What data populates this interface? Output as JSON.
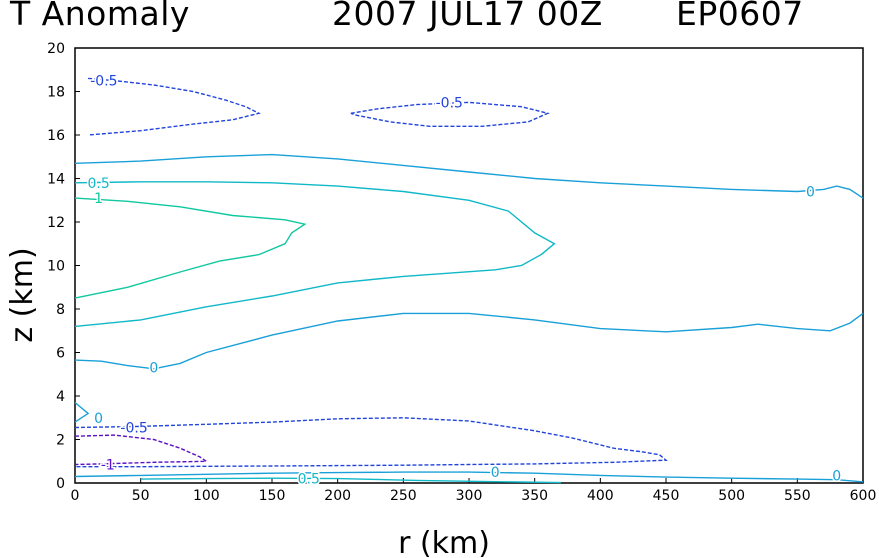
{
  "header": {
    "field": "T Anomaly",
    "datetime": "2007 JUL17 00Z",
    "storm_id": "EP0607"
  },
  "chart_data": {
    "type": "contour",
    "title": "T Anomaly   2007 JUL17 00Z   EP0607",
    "xlabel": "r (km)",
    "ylabel": "z (km)",
    "xlim": [
      0,
      600
    ],
    "ylim": [
      0,
      20
    ],
    "xticks": [
      0,
      50,
      100,
      150,
      200,
      250,
      300,
      350,
      400,
      450,
      500,
      550,
      600
    ],
    "yticks": [
      0,
      2,
      4,
      6,
      8,
      10,
      12,
      14,
      16,
      18,
      20
    ],
    "colors": {
      "neg1": "#5a10c8",
      "neg05": "#2244dd",
      "zero": "#1aa0d8",
      "pos05": "#10b8c8",
      "pos1": "#10c8a0"
    },
    "contours": [
      {
        "level": -0.5,
        "color_key": "neg05",
        "dashed": true,
        "label": "-0.5",
        "label_at": [
          22,
          18.5
        ],
        "points": [
          [
            10,
            18.6
          ],
          [
            30,
            18.5
          ],
          [
            60,
            18.3
          ],
          [
            90,
            18.0
          ],
          [
            115,
            17.6
          ],
          [
            130,
            17.3
          ],
          [
            140,
            17.0
          ],
          [
            120,
            16.7
          ],
          [
            90,
            16.5
          ],
          [
            50,
            16.2
          ],
          [
            10,
            16.0
          ]
        ]
      },
      {
        "level": -0.5,
        "color_key": "neg05",
        "dashed": true,
        "label": "-0.5",
        "label_at": [
          285,
          17.5
        ],
        "points": [
          [
            210,
            17.0
          ],
          [
            230,
            17.2
          ],
          [
            260,
            17.4
          ],
          [
            300,
            17.5
          ],
          [
            340,
            17.3
          ],
          [
            360,
            17.0
          ],
          [
            345,
            16.6
          ],
          [
            310,
            16.4
          ],
          [
            270,
            16.4
          ],
          [
            240,
            16.6
          ],
          [
            215,
            16.9
          ],
          [
            210,
            17.0
          ]
        ]
      },
      {
        "level": 0,
        "color_key": "zero",
        "dashed": false,
        "label": "0",
        "label_at": [
          560,
          13.4
        ],
        "points": [
          [
            0,
            14.7
          ],
          [
            50,
            14.8
          ],
          [
            100,
            15.0
          ],
          [
            150,
            15.1
          ],
          [
            200,
            14.9
          ],
          [
            250,
            14.6
          ],
          [
            300,
            14.3
          ],
          [
            350,
            14.0
          ],
          [
            400,
            13.8
          ],
          [
            450,
            13.65
          ],
          [
            500,
            13.5
          ],
          [
            550,
            13.4
          ],
          [
            570,
            13.5
          ],
          [
            580,
            13.65
          ],
          [
            590,
            13.5
          ],
          [
            600,
            13.1
          ]
        ]
      },
      {
        "level": 0.5,
        "color_key": "pos05",
        "dashed": false,
        "label": "0.5",
        "label_at": [
          18,
          13.8
        ],
        "points": [
          [
            0,
            13.8
          ],
          [
            50,
            13.85
          ],
          [
            100,
            13.85
          ],
          [
            150,
            13.8
          ],
          [
            200,
            13.65
          ],
          [
            250,
            13.4
          ],
          [
            300,
            13.0
          ],
          [
            330,
            12.5
          ],
          [
            350,
            11.5
          ],
          [
            365,
            11.0
          ],
          [
            355,
            10.5
          ],
          [
            340,
            10.0
          ],
          [
            320,
            9.8
          ],
          [
            250,
            9.5
          ],
          [
            200,
            9.2
          ],
          [
            150,
            8.6
          ],
          [
            100,
            8.1
          ],
          [
            50,
            7.5
          ],
          [
            0,
            7.2
          ]
        ]
      },
      {
        "level": 1,
        "color_key": "pos1",
        "dashed": false,
        "label": "1",
        "label_at": [
          18,
          13.1
        ],
        "points": [
          [
            0,
            13.1
          ],
          [
            40,
            12.95
          ],
          [
            80,
            12.7
          ],
          [
            120,
            12.3
          ],
          [
            160,
            12.1
          ],
          [
            175,
            11.9
          ],
          [
            165,
            11.5
          ],
          [
            160,
            11.0
          ],
          [
            140,
            10.5
          ],
          [
            110,
            10.2
          ],
          [
            80,
            9.7
          ],
          [
            40,
            9.0
          ],
          [
            0,
            8.5
          ]
        ]
      },
      {
        "level": 0,
        "color_key": "zero",
        "dashed": false,
        "label": "0",
        "label_at": [
          60,
          5.3
        ],
        "points": [
          [
            0,
            5.65
          ],
          [
            20,
            5.6
          ],
          [
            40,
            5.4
          ],
          [
            60,
            5.25
          ],
          [
            80,
            5.5
          ],
          [
            100,
            6.0
          ],
          [
            150,
            6.8
          ],
          [
            200,
            7.45
          ],
          [
            250,
            7.8
          ],
          [
            300,
            7.8
          ],
          [
            350,
            7.5
          ],
          [
            400,
            7.1
          ],
          [
            450,
            6.95
          ],
          [
            500,
            7.15
          ],
          [
            520,
            7.3
          ],
          [
            550,
            7.1
          ],
          [
            575,
            7.0
          ],
          [
            590,
            7.35
          ],
          [
            600,
            7.8
          ]
        ]
      },
      {
        "level": 0,
        "color_key": "zero",
        "dashed": false,
        "label": "0",
        "label_at": [
          18,
          3.0
        ],
        "points": [
          [
            0,
            3.7
          ],
          [
            10,
            3.2
          ],
          [
            0,
            2.8
          ]
        ]
      },
      {
        "level": -0.5,
        "color_key": "neg05",
        "dashed": true,
        "label": "-0.5",
        "label_at": [
          45,
          2.55
        ],
        "points": [
          [
            0,
            2.55
          ],
          [
            50,
            2.6
          ],
          [
            100,
            2.7
          ],
          [
            150,
            2.8
          ],
          [
            200,
            2.95
          ],
          [
            250,
            3.0
          ],
          [
            300,
            2.85
          ],
          [
            350,
            2.4
          ],
          [
            380,
            2.05
          ],
          [
            410,
            1.6
          ],
          [
            430,
            1.45
          ],
          [
            445,
            1.3
          ],
          [
            450,
            1.05
          ],
          [
            410,
            0.95
          ],
          [
            350,
            0.88
          ],
          [
            300,
            0.85
          ],
          [
            250,
            0.82
          ],
          [
            200,
            0.8
          ],
          [
            150,
            0.78
          ],
          [
            100,
            0.77
          ],
          [
            50,
            0.75
          ],
          [
            0,
            0.75
          ]
        ]
      },
      {
        "level": -1,
        "color_key": "neg1",
        "dashed": true,
        "label": "-1",
        "label_at": [
          25,
          0.85
        ],
        "points": [
          [
            0,
            2.15
          ],
          [
            30,
            2.2
          ],
          [
            60,
            2.0
          ],
          [
            80,
            1.6
          ],
          [
            95,
            1.2
          ],
          [
            100,
            1.0
          ],
          [
            60,
            0.95
          ],
          [
            20,
            0.88
          ],
          [
            0,
            0.85
          ]
        ]
      },
      {
        "level": 0,
        "color_key": "zero",
        "dashed": false,
        "label": "0",
        "label_at": [
          320,
          0.5
        ],
        "points": [
          [
            0,
            0.3
          ],
          [
            50,
            0.35
          ],
          [
            100,
            0.4
          ],
          [
            150,
            0.45
          ],
          [
            200,
            0.48
          ],
          [
            250,
            0.5
          ],
          [
            300,
            0.5
          ],
          [
            350,
            0.45
          ],
          [
            400,
            0.35
          ],
          [
            450,
            0.27
          ],
          [
            500,
            0.22
          ],
          [
            550,
            0.18
          ],
          [
            580,
            0.15
          ],
          [
            595,
            0.08
          ],
          [
            600,
            0.05
          ]
        ]
      },
      {
        "level": 0,
        "color_key": "zero",
        "dashed": false,
        "label": "0",
        "label_at": [
          580,
          0.35
        ],
        "points": []
      },
      {
        "level": 0.5,
        "color_key": "pos05",
        "dashed": false,
        "label": "0.5",
        "label_at": [
          178,
          0.2
        ],
        "points": [
          [
            50,
            0.18
          ],
          [
            100,
            0.2
          ],
          [
            150,
            0.22
          ],
          [
            200,
            0.2
          ],
          [
            260,
            0.12
          ],
          [
            320,
            0.06
          ],
          [
            370,
            0.02
          ]
        ]
      }
    ]
  }
}
